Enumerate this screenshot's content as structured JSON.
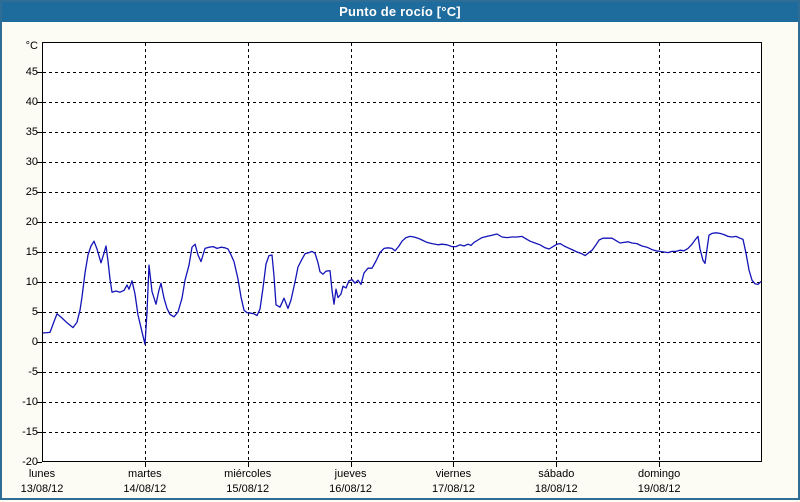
{
  "window": {
    "title": "Punto de rocío [°C]"
  },
  "colors": {
    "titlebar_bg": "#1e6b9d",
    "titlebar_text": "#ffffff",
    "frame_border": "#2e6e96",
    "page_bg": "#fcfcf5",
    "plot_bg": "#ffffff",
    "plot_border": "#000000",
    "grid": "#000000",
    "series_line": "#1414b8"
  },
  "chart_data": {
    "type": "line",
    "title": "Punto de rocío [°C]",
    "y_unit": "°C",
    "ylabel": "",
    "xlabel": "",
    "y_range": [
      -20,
      50
    ],
    "y_ticks": [
      45,
      40,
      35,
      30,
      25,
      20,
      15,
      10,
      5,
      0,
      -5,
      -10,
      -15,
      -20
    ],
    "x_range": [
      0,
      7
    ],
    "grid": "dashed",
    "legend_position": "none",
    "x_days": [
      {
        "name": "lunes",
        "date": "13/08/12"
      },
      {
        "name": "martes",
        "date": "14/08/12"
      },
      {
        "name": "miércoles",
        "date": "15/08/12"
      },
      {
        "name": "jueves",
        "date": "16/08/12"
      },
      {
        "name": "viernes",
        "date": "17/08/12"
      },
      {
        "name": "sábado",
        "date": "18/08/12"
      },
      {
        "name": "domingo",
        "date": "19/08/12"
      }
    ],
    "series": [
      {
        "name": "Punto de rocío",
        "color": "#1414b8",
        "points": [
          [
            0.01,
            1.5
          ],
          [
            0.078,
            1.6
          ],
          [
            0.117,
            3.4
          ],
          [
            0.146,
            4.7
          ],
          [
            0.194,
            4.0
          ],
          [
            0.243,
            3.2
          ],
          [
            0.301,
            2.4
          ],
          [
            0.34,
            3.3
          ],
          [
            0.369,
            5.3
          ],
          [
            0.389,
            7.5
          ],
          [
            0.418,
            11.5
          ],
          [
            0.447,
            14.5
          ],
          [
            0.476,
            16.0
          ],
          [
            0.506,
            16.8
          ],
          [
            0.535,
            15.5
          ],
          [
            0.574,
            13.2
          ],
          [
            0.603,
            14.8
          ],
          [
            0.622,
            16.0
          ],
          [
            0.642,
            13.5
          ],
          [
            0.661,
            10.5
          ],
          [
            0.681,
            8.3
          ],
          [
            0.719,
            8.5
          ],
          [
            0.758,
            8.3
          ],
          [
            0.797,
            8.6
          ],
          [
            0.826,
            9.5
          ],
          [
            0.846,
            8.8
          ],
          [
            0.875,
            10.2
          ],
          [
            0.904,
            8.0
          ],
          [
            0.933,
            4.5
          ],
          [
            0.972,
            1.7
          ],
          [
            1.001,
            -0.4
          ],
          [
            1.021,
            5.0
          ],
          [
            1.04,
            12.8
          ],
          [
            1.069,
            8.4
          ],
          [
            1.108,
            6.3
          ],
          [
            1.137,
            8.6
          ],
          [
            1.157,
            9.8
          ],
          [
            1.186,
            7.3
          ],
          [
            1.215,
            5.6
          ],
          [
            1.244,
            4.6
          ],
          [
            1.283,
            4.2
          ],
          [
            1.322,
            5.0
          ],
          [
            1.361,
            7.3
          ],
          [
            1.39,
            10.3
          ],
          [
            1.429,
            12.8
          ],
          [
            1.458,
            15.8
          ],
          [
            1.488,
            16.3
          ],
          [
            1.517,
            14.5
          ],
          [
            1.546,
            13.4
          ],
          [
            1.585,
            15.6
          ],
          [
            1.624,
            15.8
          ],
          [
            1.663,
            15.9
          ],
          [
            1.702,
            15.6
          ],
          [
            1.74,
            15.8
          ],
          [
            1.779,
            15.7
          ],
          [
            1.808,
            15.5
          ],
          [
            1.838,
            14.5
          ],
          [
            1.867,
            13.4
          ],
          [
            1.906,
            10.5
          ],
          [
            1.935,
            7.5
          ],
          [
            1.964,
            5.3
          ],
          [
            1.993,
            4.9
          ],
          [
            2.032,
            4.8
          ],
          [
            2.061,
            4.7
          ],
          [
            2.09,
            4.4
          ],
          [
            2.119,
            5.5
          ],
          [
            2.149,
            9.0
          ],
          [
            2.178,
            13.0
          ],
          [
            2.207,
            14.4
          ],
          [
            2.236,
            14.5
          ],
          [
            2.256,
            11.0
          ],
          [
            2.275,
            6.2
          ],
          [
            2.314,
            5.8
          ],
          [
            2.353,
            7.3
          ],
          [
            2.392,
            5.6
          ],
          [
            2.421,
            7.0
          ],
          [
            2.46,
            10.0
          ],
          [
            2.489,
            12.5
          ],
          [
            2.528,
            13.8
          ],
          [
            2.557,
            14.7
          ],
          [
            2.596,
            14.9
          ],
          [
            2.625,
            15.1
          ],
          [
            2.654,
            14.8
          ],
          [
            2.683,
            13.2
          ],
          [
            2.703,
            11.7
          ],
          [
            2.732,
            11.3
          ],
          [
            2.761,
            11.8
          ],
          [
            2.8,
            11.9
          ],
          [
            2.82,
            8.5
          ],
          [
            2.839,
            6.3
          ],
          [
            2.858,
            8.8
          ],
          [
            2.878,
            7.4
          ],
          [
            2.907,
            8.0
          ],
          [
            2.926,
            9.3
          ],
          [
            2.956,
            9.0
          ],
          [
            2.985,
            10.2
          ],
          [
            3.014,
            10.4
          ],
          [
            3.043,
            9.8
          ],
          [
            3.072,
            10.3
          ],
          [
            3.101,
            9.6
          ],
          [
            3.131,
            11.5
          ],
          [
            3.169,
            12.3
          ],
          [
            3.208,
            12.3
          ],
          [
            3.247,
            13.5
          ],
          [
            3.286,
            14.9
          ],
          [
            3.325,
            15.6
          ],
          [
            3.364,
            15.7
          ],
          [
            3.403,
            15.6
          ],
          [
            3.432,
            15.2
          ],
          [
            3.471,
            16.0
          ],
          [
            3.5,
            16.8
          ],
          [
            3.539,
            17.4
          ],
          [
            3.578,
            17.6
          ],
          [
            3.617,
            17.5
          ],
          [
            3.656,
            17.3
          ],
          [
            3.694,
            17.0
          ],
          [
            3.743,
            16.6
          ],
          [
            3.792,
            16.4
          ],
          [
            3.85,
            16.2
          ],
          [
            3.889,
            16.3
          ],
          [
            3.938,
            16.2
          ],
          [
            3.986,
            15.9
          ],
          [
            4.025,
            15.9
          ],
          [
            4.064,
            16.2
          ],
          [
            4.103,
            16.0
          ],
          [
            4.142,
            16.3
          ],
          [
            4.171,
            16.1
          ],
          [
            4.2,
            16.6
          ],
          [
            4.239,
            17.0
          ],
          [
            4.278,
            17.4
          ],
          [
            4.326,
            17.6
          ],
          [
            4.375,
            17.8
          ],
          [
            4.424,
            18.0
          ],
          [
            4.472,
            17.5
          ],
          [
            4.521,
            17.4
          ],
          [
            4.57,
            17.5
          ],
          [
            4.618,
            17.5
          ],
          [
            4.667,
            17.6
          ],
          [
            4.706,
            17.2
          ],
          [
            4.745,
            16.8
          ],
          [
            4.793,
            16.5
          ],
          [
            4.842,
            16.2
          ],
          [
            4.891,
            15.7
          ],
          [
            4.93,
            15.5
          ],
          [
            4.969,
            15.9
          ],
          [
            5.007,
            16.3
          ],
          [
            5.037,
            16.4
          ],
          [
            5.076,
            16.0
          ],
          [
            5.114,
            15.7
          ],
          [
            5.153,
            15.4
          ],
          [
            5.202,
            15.0
          ],
          [
            5.25,
            14.7
          ],
          [
            5.28,
            14.4
          ],
          [
            5.309,
            14.8
          ],
          [
            5.348,
            15.3
          ],
          [
            5.386,
            16.2
          ],
          [
            5.416,
            17.0
          ],
          [
            5.454,
            17.3
          ],
          [
            5.503,
            17.3
          ],
          [
            5.542,
            17.3
          ],
          [
            5.581,
            16.9
          ],
          [
            5.619,
            16.5
          ],
          [
            5.658,
            16.6
          ],
          [
            5.697,
            16.7
          ],
          [
            5.736,
            16.5
          ],
          [
            5.784,
            16.4
          ],
          [
            5.833,
            16.0
          ],
          [
            5.882,
            15.8
          ],
          [
            5.93,
            15.4
          ],
          [
            5.969,
            15.2
          ],
          [
            6.008,
            15.1
          ],
          [
            6.047,
            15.0
          ],
          [
            6.086,
            14.9
          ],
          [
            6.125,
            15.1
          ],
          [
            6.164,
            15.1
          ],
          [
            6.203,
            15.3
          ],
          [
            6.242,
            15.2
          ],
          [
            6.281,
            15.6
          ],
          [
            6.319,
            16.3
          ],
          [
            6.349,
            17.0
          ],
          [
            6.378,
            17.6
          ],
          [
            6.397,
            15.5
          ],
          [
            6.426,
            13.6
          ],
          [
            6.446,
            13.1
          ],
          [
            6.465,
            15.5
          ],
          [
            6.485,
            17.8
          ],
          [
            6.514,
            18.1
          ],
          [
            6.553,
            18.2
          ],
          [
            6.592,
            18.1
          ],
          [
            6.631,
            17.9
          ],
          [
            6.669,
            17.6
          ],
          [
            6.708,
            17.5
          ],
          [
            6.747,
            17.6
          ],
          [
            6.786,
            17.3
          ],
          [
            6.815,
            17.1
          ],
          [
            6.844,
            14.8
          ],
          [
            6.874,
            12.0
          ],
          [
            6.903,
            10.3
          ],
          [
            6.932,
            9.7
          ],
          [
            6.961,
            9.6
          ],
          [
            6.99,
            10.1
          ]
        ]
      }
    ]
  }
}
